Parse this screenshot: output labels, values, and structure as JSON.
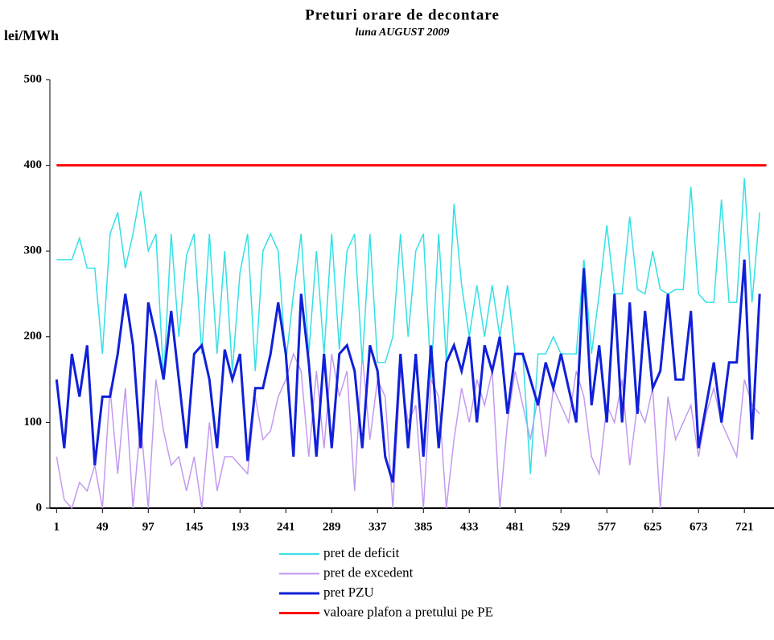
{
  "chart_data": {
    "type": "line",
    "title": "Preturi orare de decontare",
    "subtitle": "luna  AUGUST 2009",
    "y_label": "lei/MWh",
    "xlim": [
      -6,
      752
    ],
    "ylim": [
      0,
      500
    ],
    "yticks": [
      0,
      100,
      200,
      300,
      400,
      500
    ],
    "xticks": [
      1,
      49,
      97,
      145,
      193,
      241,
      289,
      337,
      385,
      433,
      481,
      529,
      577,
      625,
      673,
      721
    ],
    "x": [
      1,
      9,
      17,
      25,
      33,
      41,
      49,
      57,
      65,
      73,
      81,
      89,
      97,
      105,
      113,
      121,
      129,
      137,
      145,
      153,
      161,
      169,
      177,
      185,
      193,
      201,
      209,
      217,
      225,
      233,
      241,
      249,
      257,
      265,
      273,
      281,
      289,
      297,
      305,
      313,
      321,
      329,
      337,
      345,
      353,
      361,
      369,
      377,
      385,
      393,
      401,
      409,
      417,
      425,
      433,
      441,
      449,
      457,
      465,
      473,
      481,
      489,
      497,
      505,
      513,
      521,
      529,
      537,
      545,
      553,
      561,
      569,
      577,
      585,
      593,
      601,
      609,
      617,
      625,
      633,
      641,
      649,
      657,
      665,
      673,
      681,
      689,
      697,
      705,
      713,
      721,
      729,
      737
    ],
    "series": [
      {
        "name": "pret de deficit",
        "color": "#33e0e6",
        "width": 1.5,
        "values": [
          290,
          290,
          290,
          315,
          280,
          280,
          180,
          320,
          345,
          280,
          320,
          370,
          300,
          320,
          150,
          320,
          200,
          295,
          320,
          180,
          320,
          180,
          300,
          160,
          275,
          320,
          160,
          300,
          320,
          300,
          170,
          250,
          320,
          180,
          300,
          180,
          320,
          185,
          300,
          320,
          170,
          320,
          170,
          170,
          200,
          320,
          200,
          300,
          320,
          150,
          320,
          170,
          355,
          260,
          200,
          260,
          200,
          260,
          200,
          260,
          180,
          180,
          40,
          180,
          180,
          200,
          180,
          180,
          180,
          290,
          180,
          250,
          330,
          250,
          250,
          340,
          255,
          250,
          300,
          255,
          250,
          255,
          255,
          375,
          250,
          240,
          240,
          360,
          240,
          240,
          385,
          240,
          345
        ]
      },
      {
        "name": "pret de excedent",
        "color": "#c39af0",
        "width": 1.5,
        "values": [
          60,
          10,
          0,
          30,
          20,
          50,
          0,
          140,
          40,
          140,
          0,
          100,
          0,
          150,
          90,
          50,
          60,
          20,
          60,
          0,
          100,
          20,
          60,
          60,
          50,
          40,
          130,
          80,
          90,
          130,
          150,
          180,
          160,
          60,
          160,
          70,
          180,
          130,
          160,
          20,
          180,
          80,
          150,
          130,
          0,
          160,
          100,
          120,
          0,
          150,
          130,
          0,
          80,
          140,
          100,
          150,
          120,
          160,
          0,
          100,
          160,
          120,
          80,
          130,
          60,
          140,
          120,
          100,
          160,
          130,
          60,
          40,
          120,
          100,
          150,
          50,
          120,
          100,
          140,
          0,
          130,
          80,
          100,
          120,
          60,
          110,
          140,
          100,
          80,
          60,
          150,
          120,
          110
        ]
      },
      {
        "name": "pret PZU",
        "color": "#1020d8",
        "width": 3,
        "values": [
          150,
          70,
          180,
          130,
          190,
          50,
          130,
          130,
          180,
          250,
          190,
          70,
          240,
          200,
          150,
          230,
          150,
          70,
          180,
          190,
          150,
          70,
          185,
          150,
          180,
          55,
          140,
          140,
          180,
          240,
          180,
          60,
          250,
          170,
          60,
          180,
          70,
          180,
          190,
          160,
          70,
          190,
          160,
          60,
          30,
          180,
          70,
          180,
          60,
          190,
          70,
          170,
          190,
          160,
          200,
          100,
          190,
          160,
          200,
          110,
          180,
          180,
          150,
          120,
          170,
          140,
          180,
          140,
          100,
          280,
          120,
          190,
          100,
          250,
          100,
          240,
          110,
          230,
          140,
          160,
          250,
          150,
          150,
          230,
          70,
          120,
          170,
          100,
          170,
          170,
          290,
          80,
          250
        ]
      },
      {
        "name": "valoare plafon a pretului pe PE",
        "color": "#ff0000",
        "width": 3,
        "x": [
          1,
          744
        ],
        "values": [
          400,
          400
        ]
      }
    ]
  }
}
